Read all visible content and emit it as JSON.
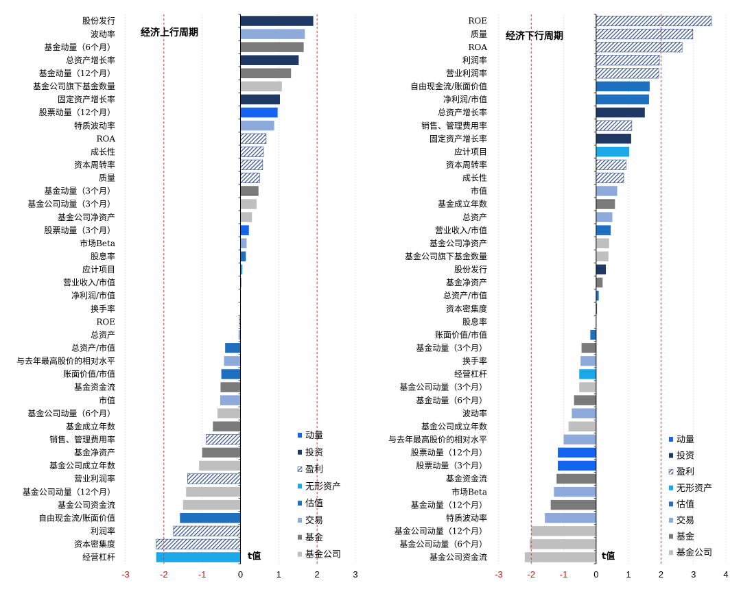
{
  "colors": {
    "momentum": "#1464f0",
    "investment": "#1f3864",
    "profit_fill": "#ffffff",
    "profit_hatch": "#2e4d8a",
    "intangible": "#1aa8e6",
    "valuation": "#1f6fbf",
    "trading": "#8eaadb",
    "fund": "#7a7a7a",
    "fund_company": "#bfbfbf",
    "ref_line": "#e03030",
    "tick_red": "#d01010"
  },
  "chart_data": [
    {
      "type": "bar",
      "orientation": "horizontal",
      "title": "经济上行周期",
      "xlabel": "t值",
      "xlim": [
        -3,
        3
      ],
      "xticks": [
        -3,
        -2,
        -1,
        0,
        1,
        2,
        3
      ],
      "reference_lines": [
        -2,
        2
      ],
      "categories": [
        "股份发行",
        "波动率",
        "基金动量（6个月）",
        "总资产增长率",
        "基金动量（12个月）",
        "基金公司旗下基金数量",
        "固定资产增长率",
        "股票动量（12个月）",
        "特质波动率",
        "ROA",
        "成长性",
        "资本周转率",
        "质量",
        "基金动量（3个月）",
        "基金公司动量（3个月）",
        "基金公司净资产",
        "股票动量（3个月）",
        "市场Beta",
        "股息率",
        "应计项目",
        "营业收入/市值",
        "净利润/市值",
        "换手率",
        "ROE",
        "总资产",
        "总资产/市值",
        "与去年最高股价的相对水平",
        "账面价值/市值",
        "基金资金流",
        "市值",
        "基金公司动量（6个月）",
        "基金成立年数",
        "销售、管理费用率",
        "基金净资产",
        "基金公司成立年数",
        "营业利润率",
        "基金公司动量（12个月）",
        "基金公司资金流",
        "自由现金流/账面价值",
        "利润率",
        "资本密集度",
        "经营杠杆"
      ],
      "values": [
        1.9,
        1.68,
        1.65,
        1.52,
        1.32,
        1.08,
        1.03,
        0.97,
        0.88,
        0.67,
        0.6,
        0.58,
        0.5,
        0.47,
        0.42,
        0.3,
        0.22,
        0.16,
        0.14,
        0.05,
        0.02,
        0.01,
        0.01,
        -0.03,
        -0.05,
        -0.4,
        -0.43,
        -0.5,
        -0.52,
        -0.53,
        -0.6,
        -0.72,
        -0.9,
        -1.0,
        -1.08,
        -1.38,
        -1.42,
        -1.5,
        -1.58,
        -1.75,
        -2.2,
        -2.2
      ],
      "groups": [
        "investment",
        "trading",
        "fund",
        "investment",
        "fund",
        "fund_company",
        "investment",
        "momentum",
        "trading",
        "profit",
        "profit",
        "profit",
        "profit",
        "fund",
        "fund_company",
        "fund_company",
        "momentum",
        "trading",
        "valuation",
        "intangible",
        "valuation",
        "valuation",
        "trading",
        "profit",
        "trading",
        "valuation",
        "trading",
        "valuation",
        "fund",
        "trading",
        "fund_company",
        "fund",
        "profit",
        "fund",
        "fund_company",
        "profit",
        "fund_company",
        "fund_company",
        "valuation",
        "profit",
        "profit",
        "intangible"
      ]
    },
    {
      "type": "bar",
      "orientation": "horizontal",
      "title": "经济下行周期",
      "xlabel": "t值",
      "xlim": [
        -3,
        4
      ],
      "xticks": [
        -3,
        -2,
        -1,
        0,
        1,
        2,
        3,
        4
      ],
      "reference_lines": [
        -2,
        2
      ],
      "categories": [
        "ROE",
        "质量",
        "ROA",
        "利润率",
        "营业利润率",
        "自由现金流/账面价值",
        "净利润/市值",
        "总资产增长率",
        "销售、管理费用率",
        "固定资产增长率",
        "应计项目",
        "资本周转率",
        "成长性",
        "市值",
        "基金成立年数",
        "总资产",
        "营业收入/市值",
        "基金公司净资产",
        "基金公司旗下基金数量",
        "股份发行",
        "基金净资产",
        "总资产/市值",
        "资本密集度",
        "股息率",
        "账面价值/市值",
        "基金动量（3个月）",
        "换手率",
        "经营杠杆",
        "基金公司动量（3个月）",
        "基金动量（6个月）",
        "波动率",
        "基金公司成立年数",
        "与去年最高股价的相对水平",
        "股票动量（12个月）",
        "股票动量（3个月）",
        "基金资金流",
        "市场Beta",
        "基金动量（12个月）",
        "特质波动率",
        "基金公司动量（12个月）",
        "基金公司动量（6个月）",
        "基金公司资金流"
      ],
      "values": [
        3.55,
        2.98,
        2.65,
        1.95,
        1.93,
        1.65,
        1.63,
        1.5,
        1.1,
        1.08,
        1.02,
        0.92,
        0.85,
        0.65,
        0.58,
        0.5,
        0.45,
        0.4,
        0.38,
        0.3,
        0.2,
        0.08,
        0.02,
        0.0,
        -0.18,
        -0.45,
        -0.48,
        -0.52,
        -0.52,
        -0.68,
        -0.75,
        -0.85,
        -1.0,
        -1.18,
        -1.18,
        -1.22,
        -1.3,
        -1.4,
        -1.58,
        -2.0,
        -2.05,
        -2.2
      ],
      "groups": [
        "profit",
        "profit",
        "profit",
        "profit",
        "profit",
        "valuation",
        "valuation",
        "investment",
        "profit",
        "investment",
        "intangible",
        "profit",
        "profit",
        "trading",
        "fund",
        "trading",
        "valuation",
        "fund_company",
        "fund_company",
        "investment",
        "fund",
        "valuation",
        "profit",
        "valuation",
        "valuation",
        "fund",
        "trading",
        "intangible",
        "fund_company",
        "fund",
        "trading",
        "fund_company",
        "trading",
        "momentum",
        "momentum",
        "fund",
        "trading",
        "fund",
        "trading",
        "fund_company",
        "fund_company",
        "fund_company"
      ]
    }
  ],
  "legend": [
    {
      "key": "momentum",
      "label": "动量"
    },
    {
      "key": "investment",
      "label": "投资"
    },
    {
      "key": "profit",
      "label": "盈利"
    },
    {
      "key": "intangible",
      "label": "无形资产"
    },
    {
      "key": "valuation",
      "label": "估值"
    },
    {
      "key": "trading",
      "label": "交易"
    },
    {
      "key": "fund",
      "label": "基金"
    },
    {
      "key": "fund_company",
      "label": "基金公司"
    }
  ]
}
